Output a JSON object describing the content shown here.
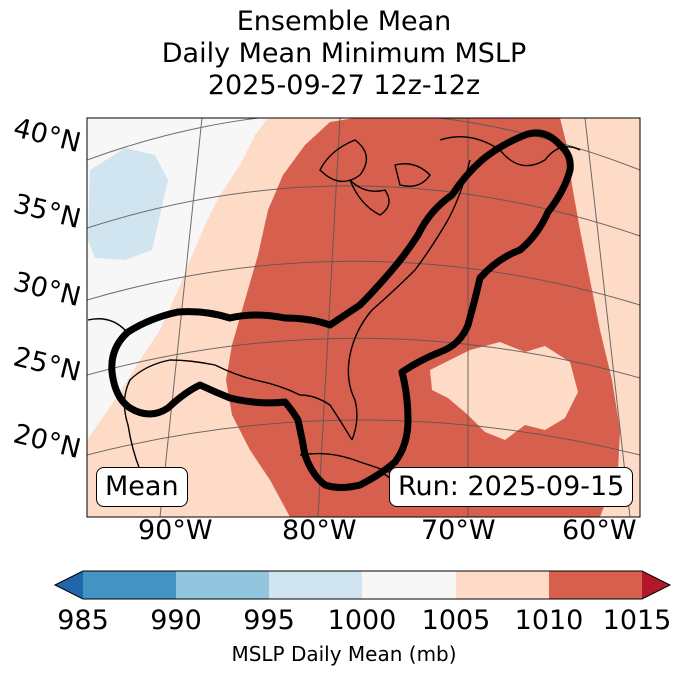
{
  "title": {
    "line1": "Ensemble Mean",
    "line2": "Daily Mean Minimum MSLP",
    "line3": "2025-09-27 12z-12z"
  },
  "map": {
    "lat_labels": [
      "40°N",
      "35°N",
      "30°N",
      "25°N",
      "20°N"
    ],
    "lon_labels": [
      "90°W",
      "80°W",
      "70°W",
      "60°W"
    ],
    "mean_badge": "Mean",
    "run_badge": "Run: 2025-09-15"
  },
  "colorbar": {
    "ticks": [
      "985",
      "990",
      "995",
      "1000",
      "1005",
      "1010",
      "1015"
    ],
    "label": "MSLP Daily Mean (mb)",
    "colors": {
      "under": "#2166ac",
      "b985_990": "#4393c3",
      "b990_995": "#92c5de",
      "b995_1000": "#d1e5f0",
      "b1000_1005": "#f7f7f7",
      "b1005_1010": "#fddbc7",
      "b1010_1015": "#d6604d",
      "over": "#b2182b"
    }
  }
}
